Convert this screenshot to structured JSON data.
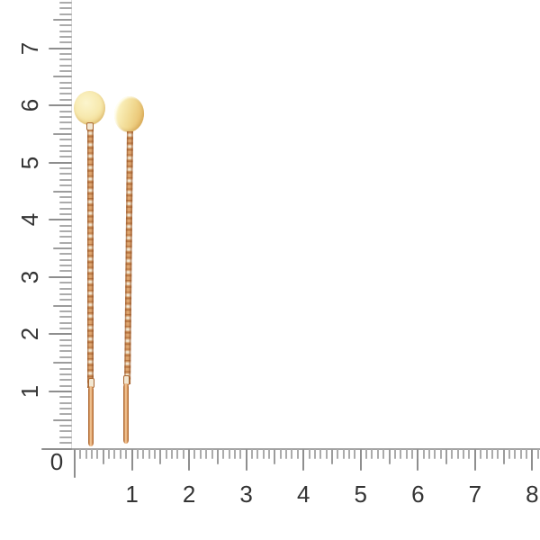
{
  "rulers": {
    "origin_label": "0",
    "vertical": {
      "labels": [
        "1",
        "2",
        "3",
        "4",
        "5",
        "6",
        "7"
      ]
    },
    "horizontal": {
      "labels": [
        "1",
        "2",
        "3",
        "4",
        "5",
        "6",
        "7",
        "8"
      ]
    }
  },
  "colors": {
    "background": "#ffffff",
    "tick_minor": "#ababab",
    "tick_half": "#9c9c9c",
    "tick_major": "#8e8e8e",
    "ruler_spine": "#a3a3a3",
    "spine_faint": "#dedede",
    "number": "#343434",
    "gold_light": "#fcf5cd",
    "gold_mid": "#f0d78e",
    "gold_deep": "#e2b562",
    "rose_gold": "#c98a50",
    "rose_gold_dark": "#a8652f",
    "rose_gold_highlight": "#f7d2a4"
  }
}
